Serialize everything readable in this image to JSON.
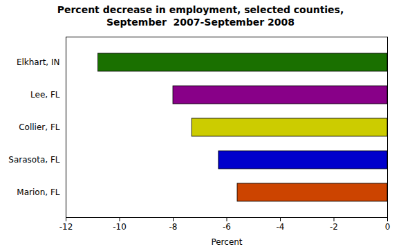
{
  "chart_data": {
    "type": "bar",
    "orientation": "horizontal",
    "title": "Percent decrease in employment, selected counties,\nSeptember  2007-September 2008",
    "categories": [
      "Elkhart, IN",
      "Lee, FL",
      "Collier, FL",
      "Sarasota, FL",
      "Marion, FL"
    ],
    "values": [
      -10.8,
      -8.0,
      -7.3,
      -6.3,
      -5.6
    ],
    "colors": [
      "#1a7000",
      "#880088",
      "#cccc00",
      "#0000cc",
      "#cc4400"
    ],
    "xlabel": "Percent",
    "xlim": [
      -12,
      0
    ],
    "xticks": [
      -12,
      -10,
      -8,
      -6,
      -4,
      -2,
      0
    ],
    "grid": false
  }
}
